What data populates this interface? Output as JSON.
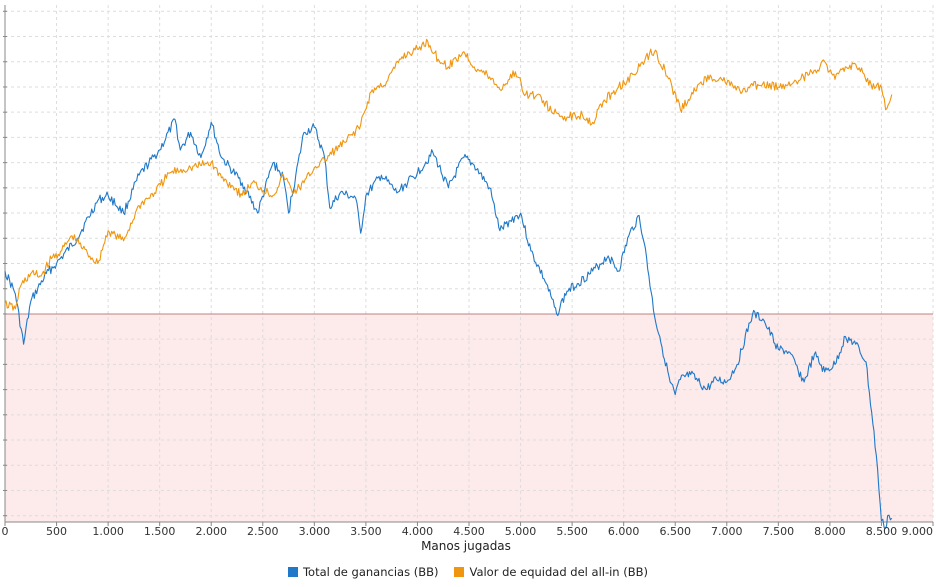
{
  "chart_data": {
    "type": "line",
    "title": "",
    "xlabel": "Manos jugadas",
    "ylabel": "",
    "xlim": [
      0,
      9000
    ],
    "ylim": [
      -825,
      1225
    ],
    "x_ticks": [
      0,
      500,
      1000,
      1500,
      2000,
      2500,
      3000,
      3500,
      4000,
      4500,
      5000,
      5500,
      6000,
      6500,
      7000,
      7500,
      8000,
      8500,
      9000
    ],
    "x_tick_labels": [
      "0",
      "500",
      "1.000",
      "1.500",
      "2.000",
      "2.500",
      "3.000",
      "3.500",
      "4.000",
      "4.500",
      "5.000",
      "5.500",
      "6.000",
      "6.500",
      "7.000",
      "7.500",
      "8.000",
      "8.500",
      "9.000"
    ],
    "y_ticks": [
      -800,
      -700,
      -600,
      -500,
      -400,
      -300,
      -200,
      -100,
      0,
      100,
      200,
      300,
      400,
      500,
      600,
      700,
      800,
      900,
      1000,
      1100,
      1200
    ],
    "grid": true,
    "legend_position": "bottom",
    "negative_region_color": "#fdeaea",
    "zero_line_color": "#c08080",
    "series": [
      {
        "name": "Total de ganancias (BB)",
        "color": "#1f78c8",
        "x": [
          0,
          100,
          180,
          250,
          400,
          500,
          700,
          900,
          1000,
          1150,
          1300,
          1500,
          1650,
          1700,
          1800,
          1900,
          2000,
          2100,
          2300,
          2450,
          2600,
          2700,
          2750,
          2900,
          3000,
          3100,
          3150,
          3250,
          3400,
          3450,
          3500,
          3650,
          3800,
          4000,
          4150,
          4300,
          4450,
          4550,
          4700,
          4800,
          4900,
          5000,
          5100,
          5250,
          5350,
          5450,
          5550,
          5700,
          5850,
          5950,
          6050,
          6150,
          6200,
          6300,
          6350,
          6450,
          6500,
          6550,
          6650,
          6800,
          6900,
          7000,
          7100,
          7250,
          7350,
          7400,
          7500,
          7600,
          7750,
          7850,
          7950,
          8050,
          8150,
          8250,
          8350,
          8450,
          8500,
          8540,
          8560,
          8600
        ],
        "y": [
          170,
          80,
          -120,
          50,
          160,
          200,
          300,
          450,
          470,
          400,
          550,
          650,
          770,
          650,
          720,
          620,
          760,
          620,
          520,
          400,
          600,
          540,
          400,
          720,
          740,
          620,
          420,
          480,
          460,
          320,
          470,
          550,
          480,
          560,
          640,
          500,
          620,
          590,
          500,
          330,
          370,
          400,
          250,
          120,
          0,
          90,
          120,
          170,
          230,
          170,
          310,
          390,
          280,
          -10,
          -90,
          -270,
          -320,
          -260,
          -240,
          -300,
          -260,
          -270,
          -200,
          0,
          -20,
          -60,
          -140,
          -150,
          -270,
          -160,
          -230,
          -200,
          -90,
          -120,
          -190,
          -560,
          -820,
          -850,
          -800,
          -810
        ]
      },
      {
        "name": "Valor de equidad del all-in (BB)",
        "color": "#f0960e",
        "x": [
          0,
          100,
          150,
          250,
          350,
          450,
          550,
          650,
          800,
          900,
          1000,
          1150,
          1300,
          1450,
          1600,
          1800,
          2000,
          2100,
          2200,
          2300,
          2400,
          2600,
          2700,
          2800,
          2900,
          3000,
          3100,
          3200,
          3300,
          3450,
          3550,
          3700,
          3850,
          4000,
          4100,
          4200,
          4300,
          4450,
          4550,
          4700,
          4800,
          4950,
          5050,
          5200,
          5300,
          5450,
          5600,
          5700,
          5800,
          5950,
          6100,
          6250,
          6300,
          6400,
          6550,
          6650,
          6750,
          6850,
          6950,
          7150,
          7300,
          7500,
          7650,
          7800,
          7950,
          8050,
          8150,
          8250,
          8400,
          8500,
          8540,
          8580,
          8600
        ],
        "y": [
          40,
          20,
          110,
          160,
          150,
          220,
          250,
          310,
          240,
          200,
          330,
          290,
          430,
          480,
          560,
          580,
          600,
          540,
          510,
          470,
          520,
          470,
          550,
          480,
          520,
          580,
          610,
          650,
          680,
          750,
          880,
          920,
          1020,
          1050,
          1080,
          1010,
          980,
          1040,
          980,
          940,
          890,
          960,
          870,
          860,
          800,
          780,
          790,
          760,
          840,
          900,
          950,
          1030,
          1040,
          970,
          810,
          860,
          920,
          940,
          930,
          880,
          910,
          900,
          920,
          950,
          1000,
          930,
          980,
          990,
          910,
          900,
          810,
          840,
          870
        ]
      }
    ]
  }
}
